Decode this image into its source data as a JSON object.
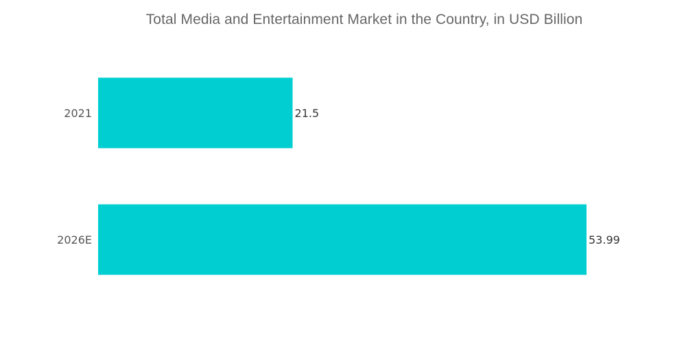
{
  "chart_data": {
    "type": "bar",
    "orientation": "horizontal",
    "title": "Total Media and Entertainment Market in the Country, in USD Billion",
    "categories": [
      "2021",
      "2026E"
    ],
    "values": [
      21.5,
      53.99
    ],
    "value_labels": [
      "21.5",
      "53.99"
    ],
    "xlabel": "",
    "ylabel": "",
    "xlim": [
      0,
      53.99
    ],
    "grid": false,
    "legend": "none",
    "bar_color": "#00CED1"
  }
}
